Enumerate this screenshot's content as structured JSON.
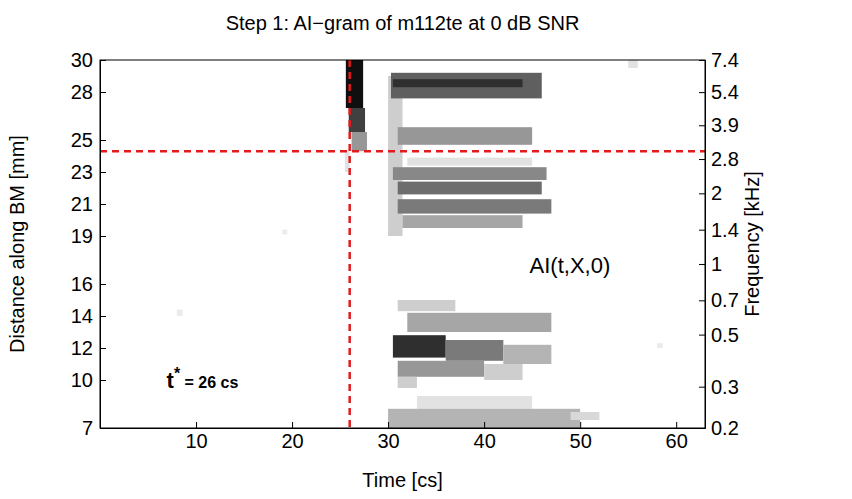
{
  "chart_data": {
    "type": "heatmap",
    "title": "Step 1: AI−gram of m112te at 0 dB SNR",
    "x_label": "Time [cs]",
    "y_label": "Distance along BM [mm]",
    "y2_label": "Frequency [kHz]",
    "xlim": [
      0,
      63
    ],
    "xticks": [
      10,
      20,
      30,
      40,
      50,
      60
    ],
    "ylim": [
      7,
      30
    ],
    "yticks": [
      7,
      10,
      12,
      14,
      16,
      19,
      21,
      23,
      25,
      28,
      30
    ],
    "y2lim": [
      0.2,
      7.4
    ],
    "y2ticks": [
      0.2,
      0.3,
      0.5,
      0.7,
      1,
      1.4,
      2,
      2.8,
      3.9,
      5.4,
      7.4
    ],
    "log": "y2",
    "zlim": [
      0,
      1
    ],
    "cells": [
      [
        25.5,
        26,
        23,
        24.3,
        0.2
      ],
      [
        26.2,
        27.8,
        24.3,
        25.5,
        0.5
      ],
      [
        25.9,
        27.6,
        25.5,
        27,
        0.8
      ],
      [
        25.6,
        27.4,
        27,
        30,
        0.95
      ],
      [
        30,
        31.5,
        19,
        29,
        0.3
      ],
      [
        30.3,
        46,
        27.6,
        29.2,
        0.7
      ],
      [
        30.5,
        44,
        28.3,
        28.8,
        0.85
      ],
      [
        31,
        45,
        24.7,
        25.8,
        0.5
      ],
      [
        32,
        45,
        23.4,
        23.9,
        0.2
      ],
      [
        30.5,
        46.5,
        22.5,
        23.3,
        0.55
      ],
      [
        31,
        46,
        21.6,
        22.4,
        0.65
      ],
      [
        31,
        47,
        20.4,
        21.3,
        0.6
      ],
      [
        31.5,
        44,
        19.5,
        20.3,
        0.45
      ],
      [
        31,
        37,
        14.3,
        15,
        0.3
      ],
      [
        32,
        47,
        13,
        14.2,
        0.45
      ],
      [
        30.5,
        36,
        11.4,
        12.8,
        0.85
      ],
      [
        36,
        42,
        11.2,
        12.5,
        0.6
      ],
      [
        42,
        47,
        11,
        12.2,
        0.4
      ],
      [
        31,
        40,
        10.2,
        11.2,
        0.5
      ],
      [
        40,
        44,
        10,
        11,
        0.3
      ],
      [
        31,
        33,
        9.5,
        10.2,
        0.3
      ],
      [
        33,
        45,
        8.2,
        9,
        0.2
      ],
      [
        30,
        50,
        7,
        8.2,
        0.4
      ],
      [
        49,
        52,
        7.5,
        8,
        0.25
      ],
      [
        8,
        8.6,
        14,
        14.4,
        0.15
      ],
      [
        19,
        19.5,
        19.1,
        19.4,
        0.15
      ],
      [
        58,
        58.6,
        12,
        12.3,
        0.15
      ],
      [
        55,
        56,
        29.5,
        30,
        0.2
      ]
    ],
    "vline": 26,
    "hline": 24.3,
    "annotations": [
      {
        "text": "AI(t,X,0)"
      },
      {
        "text": "t",
        "sup": "*",
        "suffix": " = 26 cs"
      }
    ]
  }
}
